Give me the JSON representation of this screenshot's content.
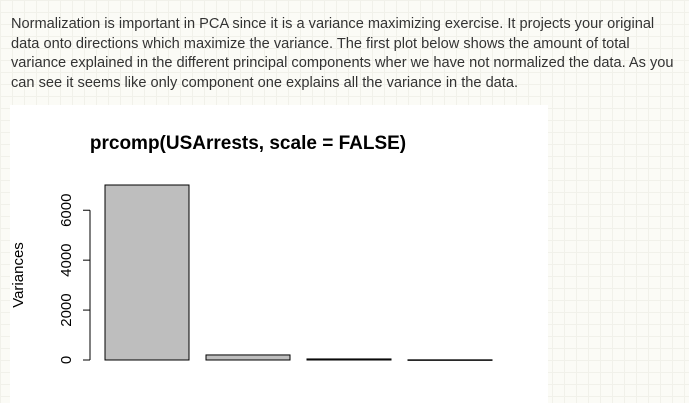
{
  "paragraph": "Normalization is important in PCA since it is a variance maximizing exercise. It projects your original data onto directions which maximize the variance. The first plot below shows the amount of total variance explained in the different principal components wher we have not normalized the data. As you can see it seems like only component one explains all the variance in the data.",
  "chart_data": {
    "type": "bar",
    "title": "prcomp(USArrests, scale = FALSE)",
    "ylabel": "Variances",
    "categories": [
      null,
      null,
      null,
      null
    ],
    "values": [
      7011.1,
      202.0,
      42.1,
      6.2
    ],
    "color": "#bebebe",
    "ylim": [
      0,
      7011.1
    ],
    "yticks": [
      0,
      2000,
      4000,
      6000
    ],
    "grid": false
  }
}
